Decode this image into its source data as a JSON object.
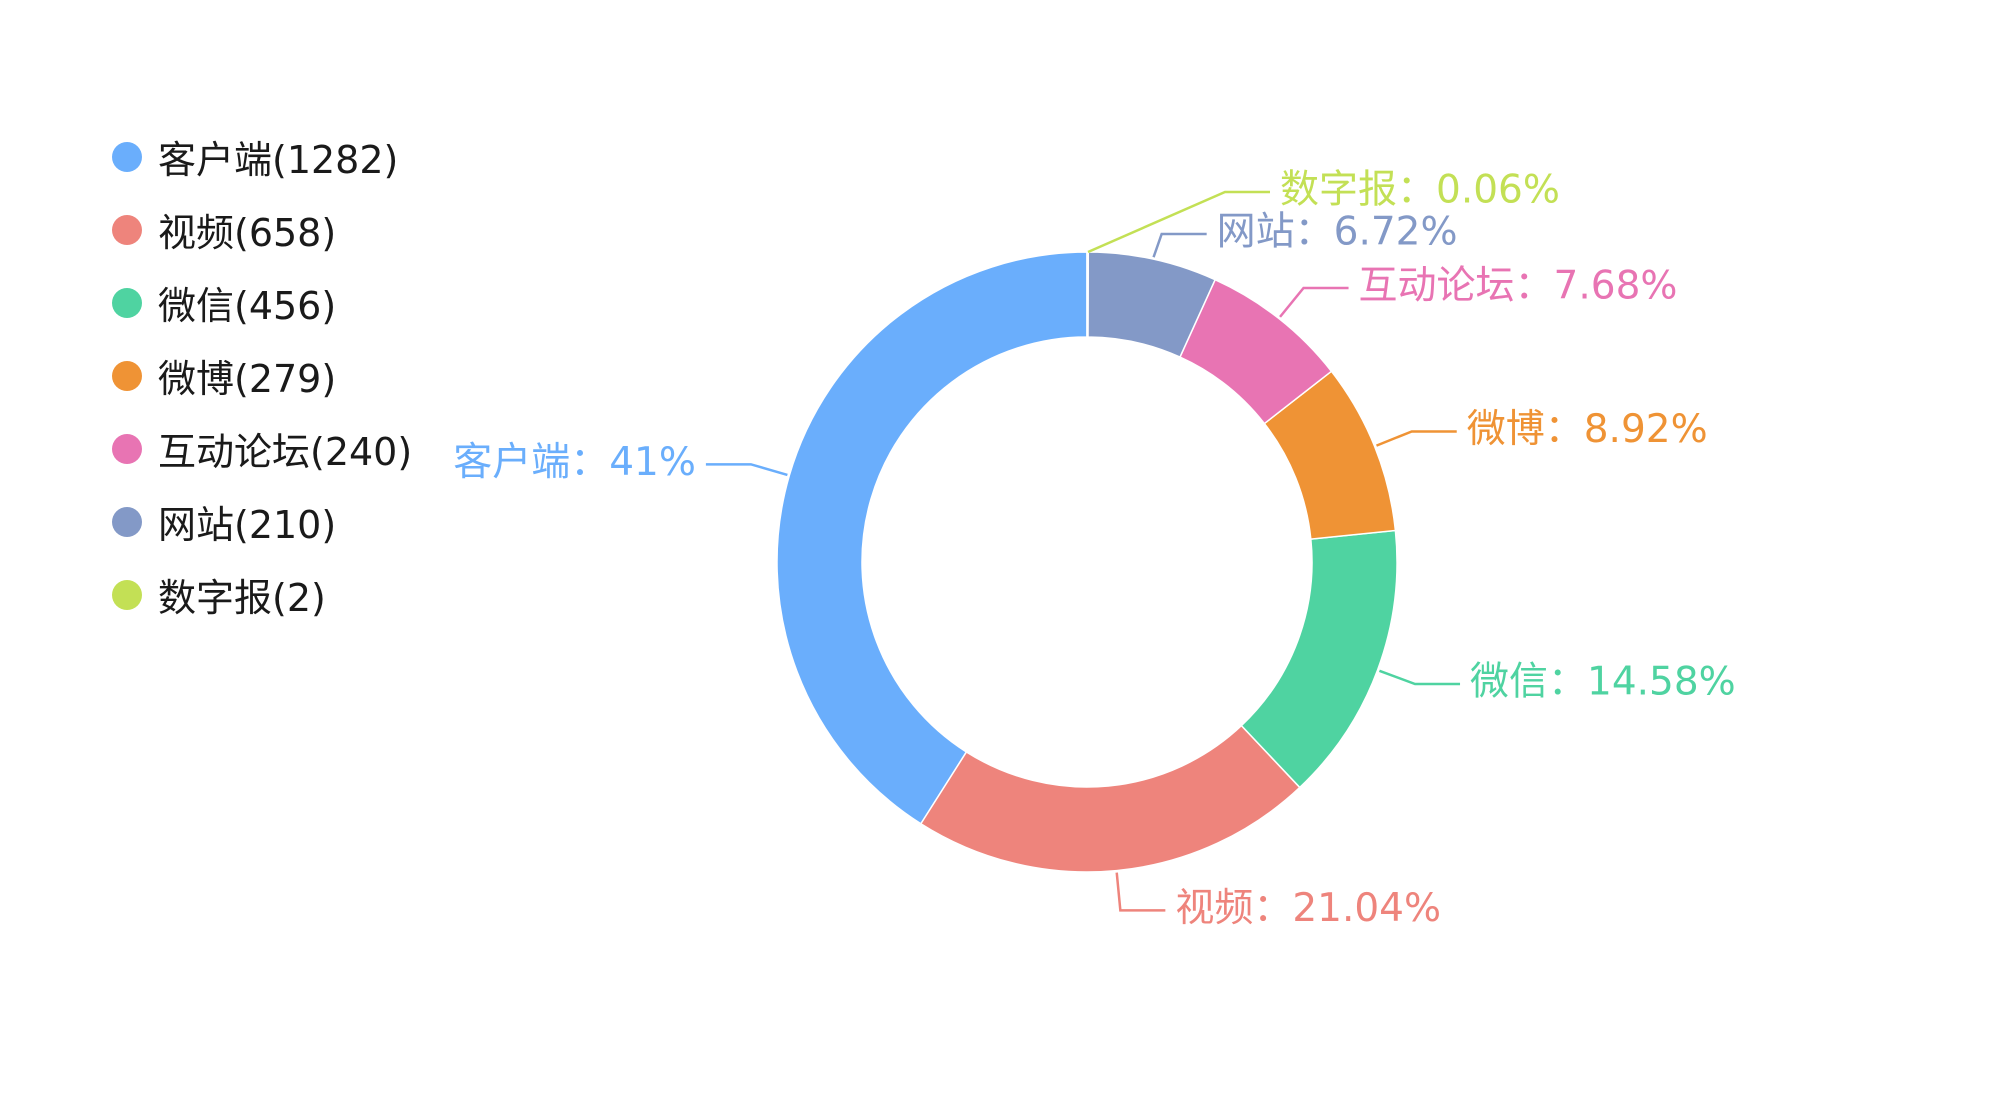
{
  "chart_data": {
    "type": "pie",
    "variant": "donut",
    "legend_position": "left",
    "slices": [
      {
        "name": "客户端",
        "count": 1282,
        "legend_label": "客户端(1282)",
        "value_label": "客户端：41%",
        "color": "#6aaefc"
      },
      {
        "name": "视频",
        "count": 658,
        "legend_label": "视频(658)",
        "value_label": "视频：21.04%",
        "color": "#ee847c"
      },
      {
        "name": "微信",
        "count": 456,
        "legend_label": "微信(456)",
        "value_label": "微信：14.58%",
        "color": "#4fd3a1"
      },
      {
        "name": "微博",
        "count": 279,
        "legend_label": "微博(279)",
        "value_label": "微博：8.92%",
        "color": "#ef9335"
      },
      {
        "name": "互动论坛",
        "count": 240,
        "legend_label": "互动论坛(240)",
        "value_label": "互动论坛：7.68%",
        "color": "#e874b3"
      },
      {
        "name": "网站",
        "count": 210,
        "legend_label": "网站(210)",
        "value_label": "网站：6.72%",
        "color": "#8399c7"
      },
      {
        "name": "数字报",
        "count": 2,
        "legend_label": "数字报(2)",
        "value_label": "数字报：0.06%",
        "color": "#c3e055"
      }
    ]
  }
}
